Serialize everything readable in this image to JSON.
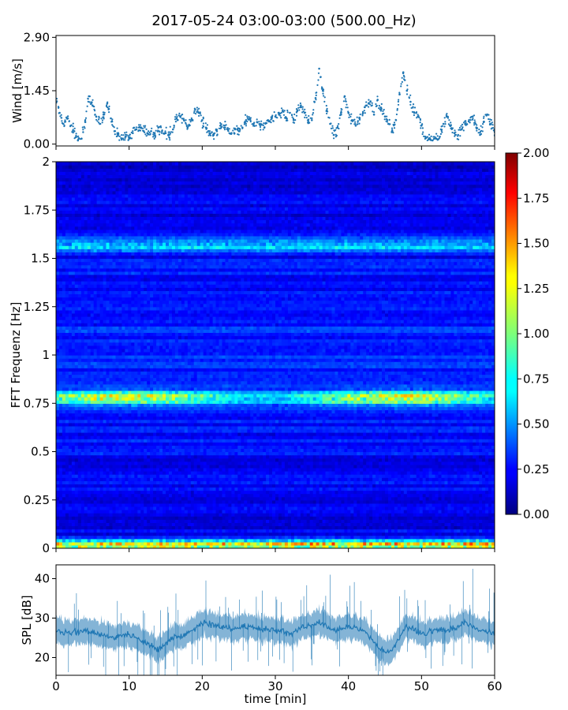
{
  "chart_data": [
    {
      "type": "scatter",
      "title": "2017-05-24 03:00-03:00 (500.00_Hz)",
      "ylabel": "Wind [m/s]",
      "xlabel": "",
      "xlim": [
        0,
        60
      ],
      "ylim": [
        -0.05,
        2.95
      ],
      "yticks": [
        "0.00",
        "1.45",
        "2.90"
      ],
      "grid": false,
      "colors": {
        "points": "#1f77b4"
      },
      "series": [
        {
          "x": [
            0.0,
            0.5,
            1.0,
            1.5,
            2.0,
            2.5,
            3.0,
            3.5,
            4.0,
            4.5,
            5.0,
            5.5,
            6.0,
            6.5,
            7.0,
            7.5,
            8.0,
            8.5,
            9.0,
            9.5,
            10.0,
            10.5,
            11.0,
            11.5,
            12.0,
            12.5,
            13.0,
            13.5,
            14.0,
            14.5,
            15.0,
            15.5,
            16.0,
            16.5,
            17.0,
            17.5,
            18.0,
            18.5,
            19.0,
            19.5,
            20.0,
            20.5,
            21.0,
            21.5,
            22.0,
            22.5,
            23.0,
            23.5,
            24.0,
            24.5,
            25.0,
            25.5,
            26.0,
            26.5,
            27.0,
            27.5,
            28.0,
            28.5,
            29.0,
            29.5,
            30.0,
            30.5,
            31.0,
            31.5,
            32.0,
            32.5,
            33.0,
            33.5,
            34.0,
            34.5,
            35.0,
            35.5,
            36.0,
            36.5,
            37.0,
            37.5,
            38.0,
            38.5,
            39.0,
            39.5,
            40.0,
            40.5,
            41.0,
            41.5,
            42.0,
            42.5,
            43.0,
            43.5,
            44.0,
            44.5,
            45.0,
            45.5,
            46.0,
            46.5,
            47.0,
            47.5,
            48.0,
            48.5,
            49.0,
            49.5,
            50.0,
            50.5,
            51.0,
            51.5,
            52.0,
            52.5,
            53.0,
            53.5,
            54.0,
            54.5,
            55.0,
            55.5,
            56.0,
            56.5,
            57.0,
            57.5,
            58.0,
            58.5,
            59.0,
            59.5,
            60.0
          ],
          "y": [
            1.15,
            0.85,
            0.55,
            0.7,
            0.5,
            0.35,
            0.1,
            0.15,
            0.6,
            1.3,
            1.05,
            0.75,
            0.55,
            0.8,
            1.1,
            0.7,
            0.35,
            0.3,
            0.15,
            0.2,
            0.15,
            0.3,
            0.4,
            0.45,
            0.35,
            0.3,
            0.35,
            0.3,
            0.45,
            0.35,
            0.3,
            0.25,
            0.4,
            0.7,
            0.75,
            0.65,
            0.45,
            0.65,
            0.95,
            0.85,
            0.65,
            0.45,
            0.3,
            0.25,
            0.35,
            0.5,
            0.45,
            0.4,
            0.3,
            0.4,
            0.35,
            0.45,
            0.65,
            0.7,
            0.55,
            0.6,
            0.55,
            0.45,
            0.65,
            0.7,
            0.75,
            0.8,
            0.9,
            0.7,
            0.85,
            0.65,
            0.9,
            1.05,
            0.85,
            0.6,
            0.65,
            1.25,
            2.05,
            1.45,
            0.9,
            0.55,
            0.25,
            0.45,
            0.8,
            1.3,
            0.85,
            0.65,
            0.5,
            0.7,
            0.85,
            1.05,
            1.15,
            0.8,
            1.2,
            0.95,
            0.75,
            0.55,
            0.35,
            0.65,
            1.35,
            1.95,
            1.45,
            1.15,
            0.85,
            0.75,
            0.5,
            0.2,
            0.15,
            0.1,
            0.15,
            0.2,
            0.55,
            0.75,
            0.5,
            0.3,
            0.25,
            0.4,
            0.55,
            0.65,
            0.75,
            0.45,
            0.25,
            0.6,
            0.8,
            0.55,
            0.35
          ]
        }
      ]
    },
    {
      "type": "heatmap",
      "ylabel": "FFT Frequenz [Hz]",
      "xlim": [
        0,
        60
      ],
      "ylim": [
        0,
        2
      ],
      "yticks": [
        "0",
        "0.25",
        "0.5",
        "0.75",
        "1",
        "1.25",
        "1.5",
        "1.75",
        "2"
      ],
      "colormap": "jet",
      "colorbar": {
        "range": [
          0.0,
          2.0
        ],
        "ticks": [
          "0.00",
          "0.25",
          "0.50",
          "0.75",
          "1.00",
          "1.25",
          "1.50",
          "1.75",
          "2.00"
        ]
      },
      "bands": [
        {
          "frequency": 0.78,
          "level": 0.95
        },
        {
          "frequency": 1.57,
          "level": 0.45
        },
        {
          "frequency": 0.02,
          "level": 1.2
        }
      ]
    },
    {
      "type": "area",
      "ylabel": "SPL [dB]",
      "xlabel": "time [min]",
      "xlim": [
        0,
        60
      ],
      "ylim": [
        15.5,
        43.5
      ],
      "yticks": [
        "20",
        "30",
        "40"
      ],
      "xticks": [
        "0",
        "10",
        "20",
        "30",
        "40",
        "50",
        "60"
      ],
      "colors": {
        "line": "#1f77b4"
      },
      "series": [
        {
          "x": [
            0,
            2,
            4,
            6,
            8,
            10,
            12,
            14,
            16,
            18,
            20,
            22,
            24,
            26,
            28,
            30,
            32,
            34,
            36,
            38,
            40,
            42,
            44,
            45,
            46,
            48,
            50,
            52,
            54,
            56,
            58,
            60
          ],
          "y": [
            27,
            26,
            27,
            26,
            25,
            26,
            24,
            22,
            25,
            26,
            29,
            28,
            27,
            28,
            27,
            27,
            26,
            28,
            29,
            27,
            28,
            27,
            23,
            21,
            22,
            28,
            26,
            27,
            27,
            29,
            27,
            26
          ]
        }
      ]
    }
  ]
}
